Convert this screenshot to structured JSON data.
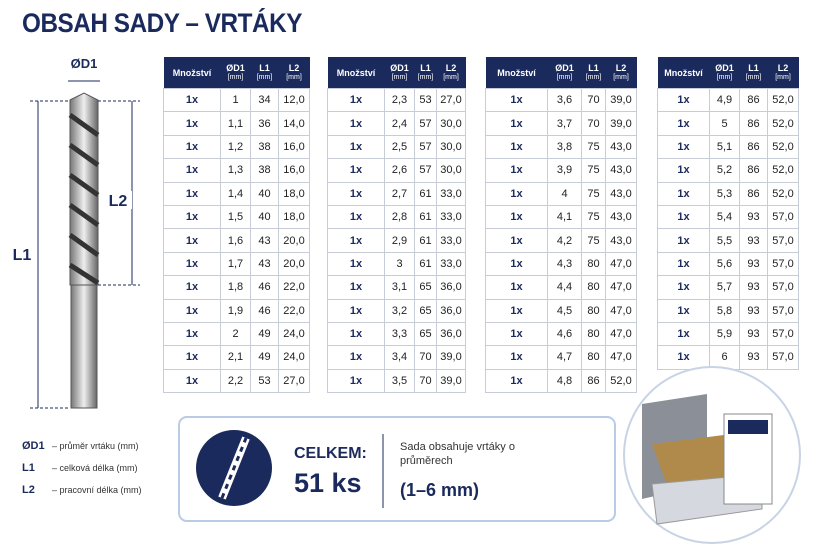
{
  "title": "OBSAH SADY – VRTÁKY",
  "diagram": {
    "d1": "ØD1",
    "l1": "L1",
    "l2": "L2"
  },
  "tables": [
    {
      "header": [
        [
          "Množství"
        ],
        [
          "ØD1",
          "[mm]"
        ],
        [
          "L1",
          "[mm]"
        ],
        [
          "L2",
          "[mm]"
        ]
      ],
      "rows": [
        [
          "1x",
          "1",
          "34",
          "12,0"
        ],
        [
          "1x",
          "1,1",
          "36",
          "14,0"
        ],
        [
          "1x",
          "1,2",
          "38",
          "16,0"
        ],
        [
          "1x",
          "1,3",
          "38",
          "16,0"
        ],
        [
          "1x",
          "1,4",
          "40",
          "18,0"
        ],
        [
          "1x",
          "1,5",
          "40",
          "18,0"
        ],
        [
          "1x",
          "1,6",
          "43",
          "20,0"
        ],
        [
          "1x",
          "1,7",
          "43",
          "20,0"
        ],
        [
          "1x",
          "1,8",
          "46",
          "22,0"
        ],
        [
          "1x",
          "1,9",
          "46",
          "22,0"
        ],
        [
          "1x",
          "2",
          "49",
          "24,0"
        ],
        [
          "1x",
          "2,1",
          "49",
          "24,0"
        ],
        [
          "1x",
          "2,2",
          "53",
          "27,0"
        ]
      ]
    },
    {
      "header": [
        [
          "Množství"
        ],
        [
          "ØD1",
          "[mm]"
        ],
        [
          "L1",
          "[mm]"
        ],
        [
          "L2",
          "[mm]"
        ]
      ],
      "rows": [
        [
          "1x",
          "2,3",
          "53",
          "27,0"
        ],
        [
          "1x",
          "2,4",
          "57",
          "30,0"
        ],
        [
          "1x",
          "2,5",
          "57",
          "30,0"
        ],
        [
          "1x",
          "2,6",
          "57",
          "30,0"
        ],
        [
          "1x",
          "2,7",
          "61",
          "33,0"
        ],
        [
          "1x",
          "2,8",
          "61",
          "33,0"
        ],
        [
          "1x",
          "2,9",
          "61",
          "33,0"
        ],
        [
          "1x",
          "3",
          "61",
          "33,0"
        ],
        [
          "1x",
          "3,1",
          "65",
          "36,0"
        ],
        [
          "1x",
          "3,2",
          "65",
          "36,0"
        ],
        [
          "1x",
          "3,3",
          "65",
          "36,0"
        ],
        [
          "1x",
          "3,4",
          "70",
          "39,0"
        ],
        [
          "1x",
          "3,5",
          "70",
          "39,0"
        ]
      ]
    },
    {
      "header": [
        [
          "Množství"
        ],
        [
          "ØD1",
          "[mm]"
        ],
        [
          "L1",
          "[mm]"
        ],
        [
          "L2",
          "[mm]"
        ]
      ],
      "rows": [
        [
          "1x",
          "3,6",
          "70",
          "39,0"
        ],
        [
          "1x",
          "3,7",
          "70",
          "39,0"
        ],
        [
          "1x",
          "3,8",
          "75",
          "43,0"
        ],
        [
          "1x",
          "3,9",
          "75",
          "43,0"
        ],
        [
          "1x",
          "4",
          "75",
          "43,0"
        ],
        [
          "1x",
          "4,1",
          "75",
          "43,0"
        ],
        [
          "1x",
          "4,2",
          "75",
          "43,0"
        ],
        [
          "1x",
          "4,3",
          "80",
          "47,0"
        ],
        [
          "1x",
          "4,4",
          "80",
          "47,0"
        ],
        [
          "1x",
          "4,5",
          "80",
          "47,0"
        ],
        [
          "1x",
          "4,6",
          "80",
          "47,0"
        ],
        [
          "1x",
          "4,7",
          "80",
          "47,0"
        ],
        [
          "1x",
          "4,8",
          "86",
          "52,0"
        ]
      ]
    },
    {
      "header": [
        [
          "Množství"
        ],
        [
          "ØD1",
          "[mm]"
        ],
        [
          "L1",
          "[mm]"
        ],
        [
          "L2",
          "[mm]"
        ]
      ],
      "rows": [
        [
          "1x",
          "4,9",
          "86",
          "52,0"
        ],
        [
          "1x",
          "5",
          "86",
          "52,0"
        ],
        [
          "1x",
          "5,1",
          "86",
          "52,0"
        ],
        [
          "1x",
          "5,2",
          "86",
          "52,0"
        ],
        [
          "1x",
          "5,3",
          "86",
          "52,0"
        ],
        [
          "1x",
          "5,4",
          "93",
          "57,0"
        ],
        [
          "1x",
          "5,5",
          "93",
          "57,0"
        ],
        [
          "1x",
          "5,6",
          "93",
          "57,0"
        ],
        [
          "1x",
          "5,7",
          "93",
          "57,0"
        ],
        [
          "1x",
          "5,8",
          "93",
          "57,0"
        ],
        [
          "1x",
          "5,9",
          "93",
          "57,0"
        ],
        [
          "1x",
          "6",
          "93",
          "57,0"
        ]
      ]
    }
  ],
  "legend": [
    {
      "symbol": "ØD1",
      "text": "– průměr vrtáku (mm)"
    },
    {
      "symbol": "L1",
      "text": "– celková délka (mm)"
    },
    {
      "symbol": "L2",
      "text": "– pracovní délka (mm)"
    }
  ],
  "summary": {
    "label": "CELKEM:",
    "count": "51 ks",
    "text": "Sada obsahuje vrtáky o průměrech",
    "range": "(1–6 mm)"
  }
}
